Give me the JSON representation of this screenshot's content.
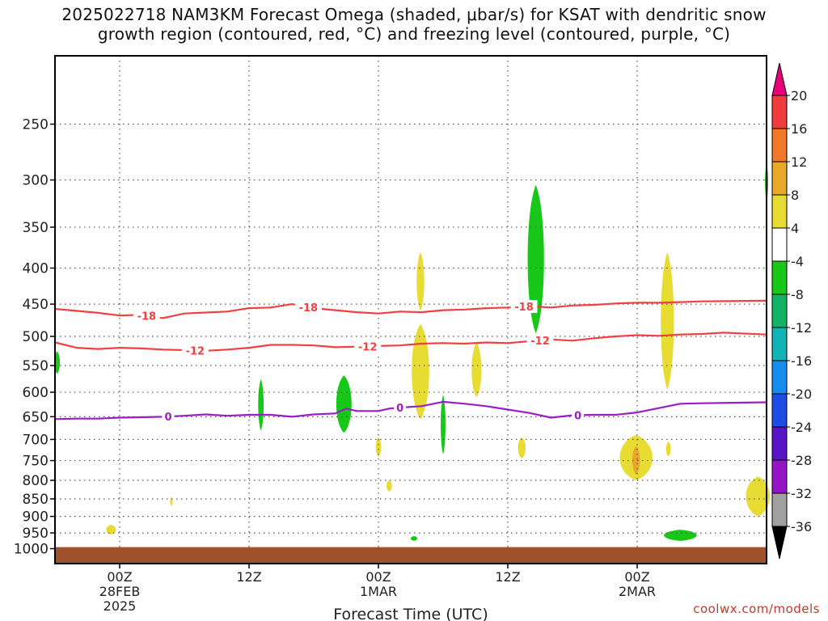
{
  "header": {
    "title_line1": "2025022718 NAM3KM Forecast Omega (shaded, μbar/s) for KSAT with dendritic snow",
    "title_line2": "growth region (contoured, red, °C) and freezing level (contoured, purple, °C)"
  },
  "footer": {
    "credit": "coolwx.com/models"
  },
  "chart_data": {
    "type": "heatmap",
    "title": "2025022718 NAM3KM Forecast Omega (shaded, μbar/s) for KSAT with dendritic snow growth region (contoured, red, °C) and freezing level (contoured, purple, °C)",
    "xlabel": "Forecast Time (UTC)",
    "ylabel": "",
    "xlim_hours": [
      18,
      84
    ],
    "ylim": [
      1050,
      200
    ],
    "y_scale": "log",
    "grid": true,
    "y_ticks": [
      250,
      300,
      350,
      400,
      450,
      500,
      550,
      600,
      650,
      700,
      750,
      800,
      850,
      900,
      950,
      1000
    ],
    "x_ticks": [
      {
        "hour": 24,
        "label": "00Z",
        "sub1": "28FEB",
        "sub2": "2025"
      },
      {
        "hour": 36,
        "label": "12Z",
        "sub1": "",
        "sub2": ""
      },
      {
        "hour": 48,
        "label": "00Z",
        "sub1": "1MAR",
        "sub2": ""
      },
      {
        "hour": 60,
        "label": "12Z",
        "sub1": "",
        "sub2": ""
      },
      {
        "hour": 72,
        "label": "00Z",
        "sub1": "2MAR",
        "sub2": ""
      }
    ],
    "colorbar": {
      "labels": [
        "20",
        "16",
        "12",
        "8",
        "4",
        "-4",
        "-8",
        "-12",
        "-16",
        "-20",
        "-24",
        "-28",
        "-32",
        "-36"
      ],
      "colors": [
        "#e8007a",
        "#f03c3c",
        "#f07828",
        "#e8a828",
        "#e8dc32",
        "#ffffff",
        "#18c818",
        "#10b464",
        "#10b4b4",
        "#148cf0",
        "#1e4be6",
        "#5a14c8",
        "#9614c8",
        "#a0a0a0",
        "#000000"
      ]
    },
    "ground": {
      "color": "#a0522d",
      "top_hpa": 995
    },
    "contours": [
      {
        "name": "-18",
        "color": "#f04040",
        "labels": [
          {
            "hour": 26.5,
            "text": "-18"
          },
          {
            "hour": 41.5,
            "text": "-18"
          },
          {
            "hour": 61.5,
            "text": "-18"
          }
        ],
        "points": [
          [
            18,
            457
          ],
          [
            22,
            463
          ],
          [
            24,
            467
          ],
          [
            26,
            466
          ],
          [
            28,
            471
          ],
          [
            30,
            464
          ],
          [
            34,
            461
          ],
          [
            36,
            456
          ],
          [
            38,
            455
          ],
          [
            40,
            450
          ],
          [
            42,
            456
          ],
          [
            44,
            459
          ],
          [
            46,
            462
          ],
          [
            48,
            464
          ],
          [
            50,
            461
          ],
          [
            52,
            462
          ],
          [
            54,
            459
          ],
          [
            56,
            458
          ],
          [
            58,
            456
          ],
          [
            60,
            455
          ],
          [
            62,
            453
          ],
          [
            64,
            455
          ],
          [
            66,
            452
          ],
          [
            68,
            451
          ],
          [
            70,
            449
          ],
          [
            72,
            448
          ],
          [
            74,
            448
          ],
          [
            76,
            447
          ],
          [
            78,
            446
          ],
          [
            84,
            445
          ]
        ]
      },
      {
        "name": "-12",
        "color": "#f04040",
        "labels": [
          {
            "hour": 31,
            "text": "-12"
          },
          {
            "hour": 47,
            "text": "-12"
          },
          {
            "hour": 63,
            "text": "-12"
          }
        ],
        "points": [
          [
            18,
            510
          ],
          [
            20,
            519
          ],
          [
            22,
            521
          ],
          [
            24,
            519
          ],
          [
            26,
            520
          ],
          [
            28,
            522
          ],
          [
            30,
            523
          ],
          [
            32,
            524
          ],
          [
            34,
            522
          ],
          [
            36,
            519
          ],
          [
            38,
            514
          ],
          [
            40,
            514
          ],
          [
            42,
            515
          ],
          [
            44,
            518
          ],
          [
            46,
            517
          ],
          [
            48,
            516
          ],
          [
            50,
            515
          ],
          [
            52,
            512
          ],
          [
            54,
            511
          ],
          [
            56,
            512
          ],
          [
            58,
            510
          ],
          [
            60,
            511
          ],
          [
            62,
            508
          ],
          [
            64,
            505
          ],
          [
            66,
            507
          ],
          [
            68,
            503
          ],
          [
            70,
            500
          ],
          [
            72,
            498
          ],
          [
            74,
            499
          ],
          [
            76,
            497
          ],
          [
            78,
            496
          ],
          [
            80,
            494
          ],
          [
            84,
            497
          ]
        ]
      },
      {
        "name": "0",
        "color": "#9a1ec8",
        "labels": [
          {
            "hour": 28.5,
            "text": "0"
          },
          {
            "hour": 50,
            "text": "0"
          },
          {
            "hour": 66.5,
            "text": "0"
          }
        ],
        "points": [
          [
            18,
            655
          ],
          [
            20,
            654
          ],
          [
            22,
            654
          ],
          [
            24,
            652
          ],
          [
            26,
            651
          ],
          [
            28,
            650
          ],
          [
            30,
            648
          ],
          [
            32,
            645
          ],
          [
            34,
            648
          ],
          [
            36,
            646
          ],
          [
            38,
            646
          ],
          [
            40,
            650
          ],
          [
            42,
            645
          ],
          [
            44,
            643
          ],
          [
            45,
            633
          ],
          [
            46,
            638
          ],
          [
            48,
            638
          ],
          [
            49,
            633
          ],
          [
            50,
            631
          ],
          [
            52,
            628
          ],
          [
            54,
            619
          ],
          [
            56,
            623
          ],
          [
            58,
            628
          ],
          [
            60,
            635
          ],
          [
            62,
            642
          ],
          [
            64,
            652
          ],
          [
            66,
            647
          ],
          [
            68,
            646
          ],
          [
            70,
            646
          ],
          [
            72,
            641
          ],
          [
            74,
            632
          ],
          [
            76,
            623
          ],
          [
            78,
            622
          ],
          [
            84,
            620
          ]
        ]
      }
    ],
    "omega_regions": [
      {
        "category": "-8",
        "color": "#18c818",
        "hour": 18.2,
        "hpa_top": 525,
        "hpa_bot": 565,
        "half_width_h": 0.25
      },
      {
        "category": "-8",
        "color": "#18c818",
        "hour": 37.1,
        "hpa_top": 575,
        "hpa_bot": 680,
        "half_width_h": 0.25
      },
      {
        "category": "-8",
        "color": "#18c818",
        "hour": 44.8,
        "hpa_top": 568,
        "hpa_bot": 685,
        "half_width_h": 0.7
      },
      {
        "category": "-8",
        "color": "#18c818",
        "hour": 54.0,
        "hpa_top": 605,
        "hpa_bot": 735,
        "half_width_h": 0.22
      },
      {
        "category": "-8",
        "color": "#18c818",
        "hour": 62.6,
        "hpa_top": 305,
        "hpa_bot": 495,
        "half_width_h": 0.75
      },
      {
        "category": "-8",
        "color": "#18c818",
        "hour": 84.0,
        "hpa_top": 285,
        "hpa_bot": 320,
        "half_width_h": 0.15
      },
      {
        "category": "-8",
        "color": "#18c818",
        "hour": 76.0,
        "hpa_top": 940,
        "hpa_bot": 975,
        "half_width_h": 1.5
      },
      {
        "category": "-8",
        "color": "#18c818",
        "hour": 51.3,
        "hpa_top": 960,
        "hpa_bot": 975,
        "half_width_h": 0.3
      },
      {
        "category": "4",
        "color": "#e8dc32",
        "hour": 51.9,
        "hpa_top": 380,
        "hpa_bot": 460,
        "half_width_h": 0.35
      },
      {
        "category": "4",
        "color": "#e8dc32",
        "hour": 51.9,
        "hpa_top": 480,
        "hpa_bot": 655,
        "half_width_h": 0.8
      },
      {
        "category": "4",
        "color": "#e8dc32",
        "hour": 57.1,
        "hpa_top": 510,
        "hpa_bot": 610,
        "half_width_h": 0.45
      },
      {
        "category": "4",
        "color": "#e8dc32",
        "hour": 74.8,
        "hpa_top": 380,
        "hpa_bot": 595,
        "half_width_h": 0.6
      },
      {
        "category": "4",
        "color": "#e8dc32",
        "hour": 48.0,
        "hpa_top": 695,
        "hpa_bot": 740,
        "half_width_h": 0.25
      },
      {
        "category": "4",
        "color": "#e8dc32",
        "hour": 49.0,
        "hpa_top": 800,
        "hpa_bot": 830,
        "half_width_h": 0.25
      },
      {
        "category": "4",
        "color": "#e8dc32",
        "hour": 61.3,
        "hpa_top": 695,
        "hpa_bot": 745,
        "half_width_h": 0.35
      },
      {
        "category": "4",
        "color": "#e8dc32",
        "hour": 74.9,
        "hpa_top": 705,
        "hpa_bot": 740,
        "half_width_h": 0.22
      },
      {
        "category": "4",
        "color": "#e8dc32",
        "hour": 71.9,
        "hpa_top": 690,
        "hpa_bot": 800,
        "half_width_h": 1.5
      },
      {
        "category": "4",
        "color": "#e8dc32",
        "hour": 23.2,
        "hpa_top": 925,
        "hpa_bot": 955,
        "half_width_h": 0.45
      },
      {
        "category": "4",
        "color": "#e8dc32",
        "hour": 28.8,
        "hpa_top": 845,
        "hpa_bot": 870,
        "half_width_h": 0.12
      },
      {
        "category": "4",
        "color": "#e8dc32",
        "hour": 83.2,
        "hpa_top": 790,
        "hpa_bot": 900,
        "half_width_h": 1.1
      },
      {
        "category": "8",
        "color": "#e8a828",
        "hour": 71.9,
        "hpa_top": 715,
        "hpa_bot": 785,
        "half_width_h": 0.35
      }
    ]
  }
}
